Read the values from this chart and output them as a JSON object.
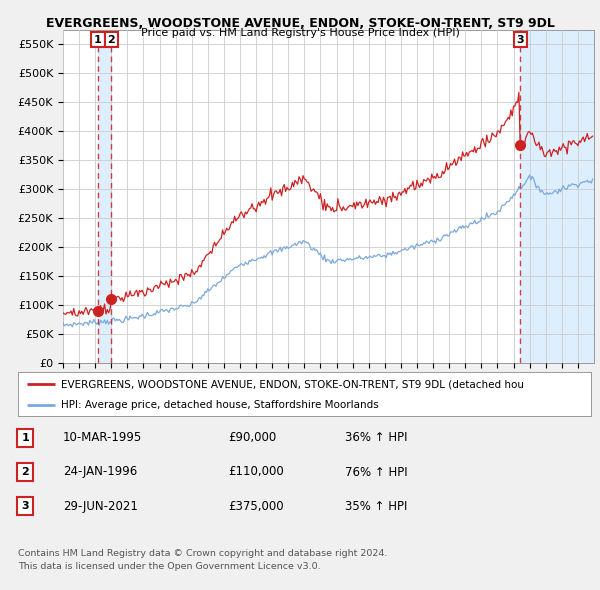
{
  "title": "EVERGREENS, WOODSTONE AVENUE, ENDON, STOKE-ON-TRENT, ST9 9DL",
  "subtitle": "Price paid vs. HM Land Registry's House Price Index (HPI)",
  "ylim": [
    0,
    575000
  ],
  "yticks": [
    0,
    50000,
    100000,
    150000,
    200000,
    250000,
    300000,
    350000,
    400000,
    450000,
    500000,
    550000
  ],
  "ytick_labels": [
    "£0",
    "£50K",
    "£100K",
    "£150K",
    "£200K",
    "£250K",
    "£300K",
    "£350K",
    "£400K",
    "£450K",
    "£500K",
    "£550K"
  ],
  "hpi_color": "#7aaadd",
  "price_color": "#cc2222",
  "sale1_year": 1995,
  "sale1_month": 3,
  "sale1_price": 90000,
  "sale2_year": 1996,
  "sale2_month": 1,
  "sale2_price": 110000,
  "sale3_year": 2021,
  "sale3_month": 6,
  "sale3_price": 375000,
  "legend_entry1": "EVERGREENS, WOODSTONE AVENUE, ENDON, STOKE-ON-TRENT, ST9 9DL (detached hou",
  "legend_entry2": "HPI: Average price, detached house, Staffordshire Moorlands",
  "table_rows": [
    {
      "num": "1",
      "date": "10-MAR-1995",
      "price": "£90,000",
      "change": "36% ↑ HPI"
    },
    {
      "num": "2",
      "date": "24-JAN-1996",
      "price": "£110,000",
      "change": "76% ↑ HPI"
    },
    {
      "num": "3",
      "date": "29-JUN-2021",
      "price": "£375,000",
      "change": "35% ↑ HPI"
    }
  ],
  "footnote1": "Contains HM Land Registry data © Crown copyright and database right 2024.",
  "footnote2": "This data is licensed under the Open Government Licence v3.0.",
  "bg_color": "#f0f0f0",
  "plot_bg_color": "#ffffff",
  "grid_color": "#cccccc",
  "hatch_color": "#dddddd",
  "shade_color": "#ddeeff",
  "xlim_start": 1993,
  "xlim_end": 2026
}
